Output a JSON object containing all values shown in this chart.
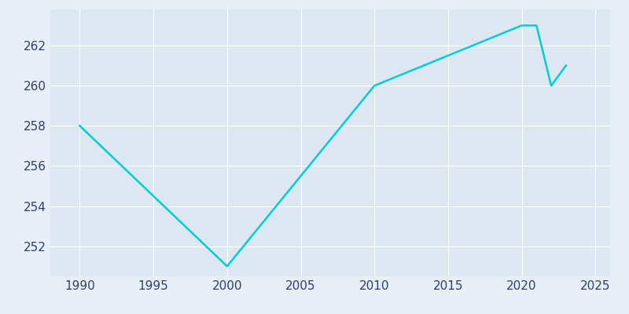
{
  "years": [
    1990,
    2000,
    2010,
    2020,
    2021,
    2022,
    2023
  ],
  "population": [
    258,
    251,
    260,
    263,
    263,
    260,
    261
  ],
  "line_color": "#00CED1",
  "bg_color": "#e8eef5",
  "plot_bg_color": "#dde7f2",
  "grid_color": "#ffffff",
  "text_color": "#2e3f6e",
  "xlim": [
    1988,
    2026
  ],
  "ylim_min": 250.5,
  "ylim_max": 263.8,
  "xticks": [
    1990,
    1995,
    2000,
    2005,
    2010,
    2015,
    2020,
    2025
  ],
  "yticks": [
    252,
    254,
    256,
    258,
    260,
    262
  ],
  "linewidth": 1.8,
  "tick_fontsize": 11
}
